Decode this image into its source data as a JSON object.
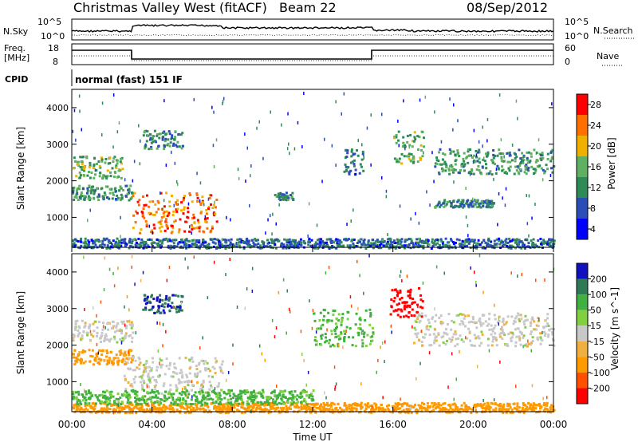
{
  "header": {
    "station": "Christmas Valley West (fitACF)",
    "beam": "Beam 22",
    "date": "08/Sep/2012"
  },
  "top_panels": {
    "nsky_label": "N.Sky",
    "nsky_ticks": [
      "10^5",
      "10^0"
    ],
    "nsearch_label": "N.Search",
    "nsearch_ticks": [
      "10^5",
      "10^0"
    ],
    "freq_label_1": "Freq.",
    "freq_label_2": "[MHz]",
    "freq_ticks": [
      "18",
      "8"
    ],
    "nave_label": "Nave",
    "nave_ticks": [
      "60",
      "0"
    ],
    "cpid_label": "CPID",
    "cpid_text": "normal (fast) 151 IF"
  },
  "chart_data": [
    {
      "type": "heatmap",
      "name": "power",
      "xlabel": "Time UT",
      "ylabel": "Slant Range [km]",
      "x_ticks": [
        "00:00",
        "04:00",
        "08:00",
        "12:00",
        "16:00",
        "20:00",
        "00:00"
      ],
      "xlim_hours": [
        0,
        24
      ],
      "y_ticks": [
        1000,
        2000,
        3000,
        4000
      ],
      "ylim": [
        180,
        4500
      ],
      "colorbar_label": "Power [dB]",
      "colorbar_ticks": [
        "28",
        "24",
        "20",
        "16",
        "12",
        "8",
        "4"
      ],
      "colorbar_range": [
        0,
        30
      ],
      "colors": [
        "#0000ff",
        "#2a4db8",
        "#2e8b57",
        "#5fb060",
        "#f0b000",
        "#ff7000",
        "#ff0000"
      ],
      "features": [
        {
          "t0": 0.0,
          "t1": 2.5,
          "r0": 2100,
          "r1": 2700,
          "level": 14
        },
        {
          "t0": 0.0,
          "t1": 3.0,
          "r0": 1500,
          "r1": 1900,
          "level": 12
        },
        {
          "t0": 3.0,
          "t1": 7.2,
          "r0": 600,
          "r1": 1700,
          "level": 24
        },
        {
          "t0": 3.5,
          "t1": 5.5,
          "r0": 2900,
          "r1": 3400,
          "level": 10
        },
        {
          "t0": 10.0,
          "t1": 11.0,
          "r0": 1500,
          "r1": 1700,
          "level": 10
        },
        {
          "t0": 13.5,
          "t1": 14.5,
          "r0": 2200,
          "r1": 2900,
          "level": 8
        },
        {
          "t0": 16.0,
          "t1": 17.5,
          "r0": 2500,
          "r1": 3400,
          "level": 14
        },
        {
          "t0": 18.0,
          "t1": 24.0,
          "r0": 2200,
          "r1": 2900,
          "level": 12
        },
        {
          "t0": 18.0,
          "t1": 21.0,
          "r0": 1300,
          "r1": 1500,
          "level": 10
        },
        {
          "t0": 0.0,
          "t1": 24.0,
          "r0": 180,
          "r1": 450,
          "level": 8
        }
      ]
    },
    {
      "type": "heatmap",
      "name": "velocity",
      "xlabel": "Time UT",
      "ylabel": "Slant Range [km]",
      "x_ticks": [
        "00:00",
        "04:00",
        "08:00",
        "12:00",
        "16:00",
        "20:00",
        "00:00"
      ],
      "xlim_hours": [
        0,
        24
      ],
      "y_ticks": [
        1000,
        2000,
        3000,
        4000
      ],
      "ylim": [
        180,
        4500
      ],
      "colorbar_label": "Velocity [m s^-1]",
      "colorbar_ticks": [
        "200",
        "100",
        "50",
        "15",
        "-15",
        "-50",
        "-100",
        "-200"
      ],
      "colorbar_range": [
        -250,
        250
      ],
      "colors": [
        "#ff0000",
        "#ff5000",
        "#ff9900",
        "#f0b040",
        "#c8c8c8",
        "#80d040",
        "#40b040",
        "#2e7a57",
        "#1010c0"
      ],
      "features": [
        {
          "t0": 0.0,
          "t1": 3.0,
          "r0": 2100,
          "r1": 2700,
          "vel": 0
        },
        {
          "t0": 0.0,
          "t1": 3.0,
          "r0": 1500,
          "r1": 1900,
          "vel": -60
        },
        {
          "t0": 2.5,
          "t1": 7.5,
          "r0": 700,
          "r1": 1700,
          "vel": 0
        },
        {
          "t0": 3.5,
          "t1": 5.5,
          "r0": 2900,
          "r1": 3400,
          "vel": 200
        },
        {
          "t0": 12.0,
          "t1": 15.0,
          "r0": 2000,
          "r1": 3000,
          "vel": 60
        },
        {
          "t0": 15.8,
          "t1": 17.5,
          "r0": 2800,
          "r1": 3600,
          "vel": -220
        },
        {
          "t0": 17.0,
          "t1": 24.0,
          "r0": 2000,
          "r1": 2900,
          "vel": 0
        },
        {
          "t0": 0.0,
          "t1": 24.0,
          "r0": 180,
          "r1": 450,
          "vel": -70
        },
        {
          "t0": 0.0,
          "t1": 12.0,
          "r0": 400,
          "r1": 800,
          "vel": 60
        }
      ]
    }
  ]
}
